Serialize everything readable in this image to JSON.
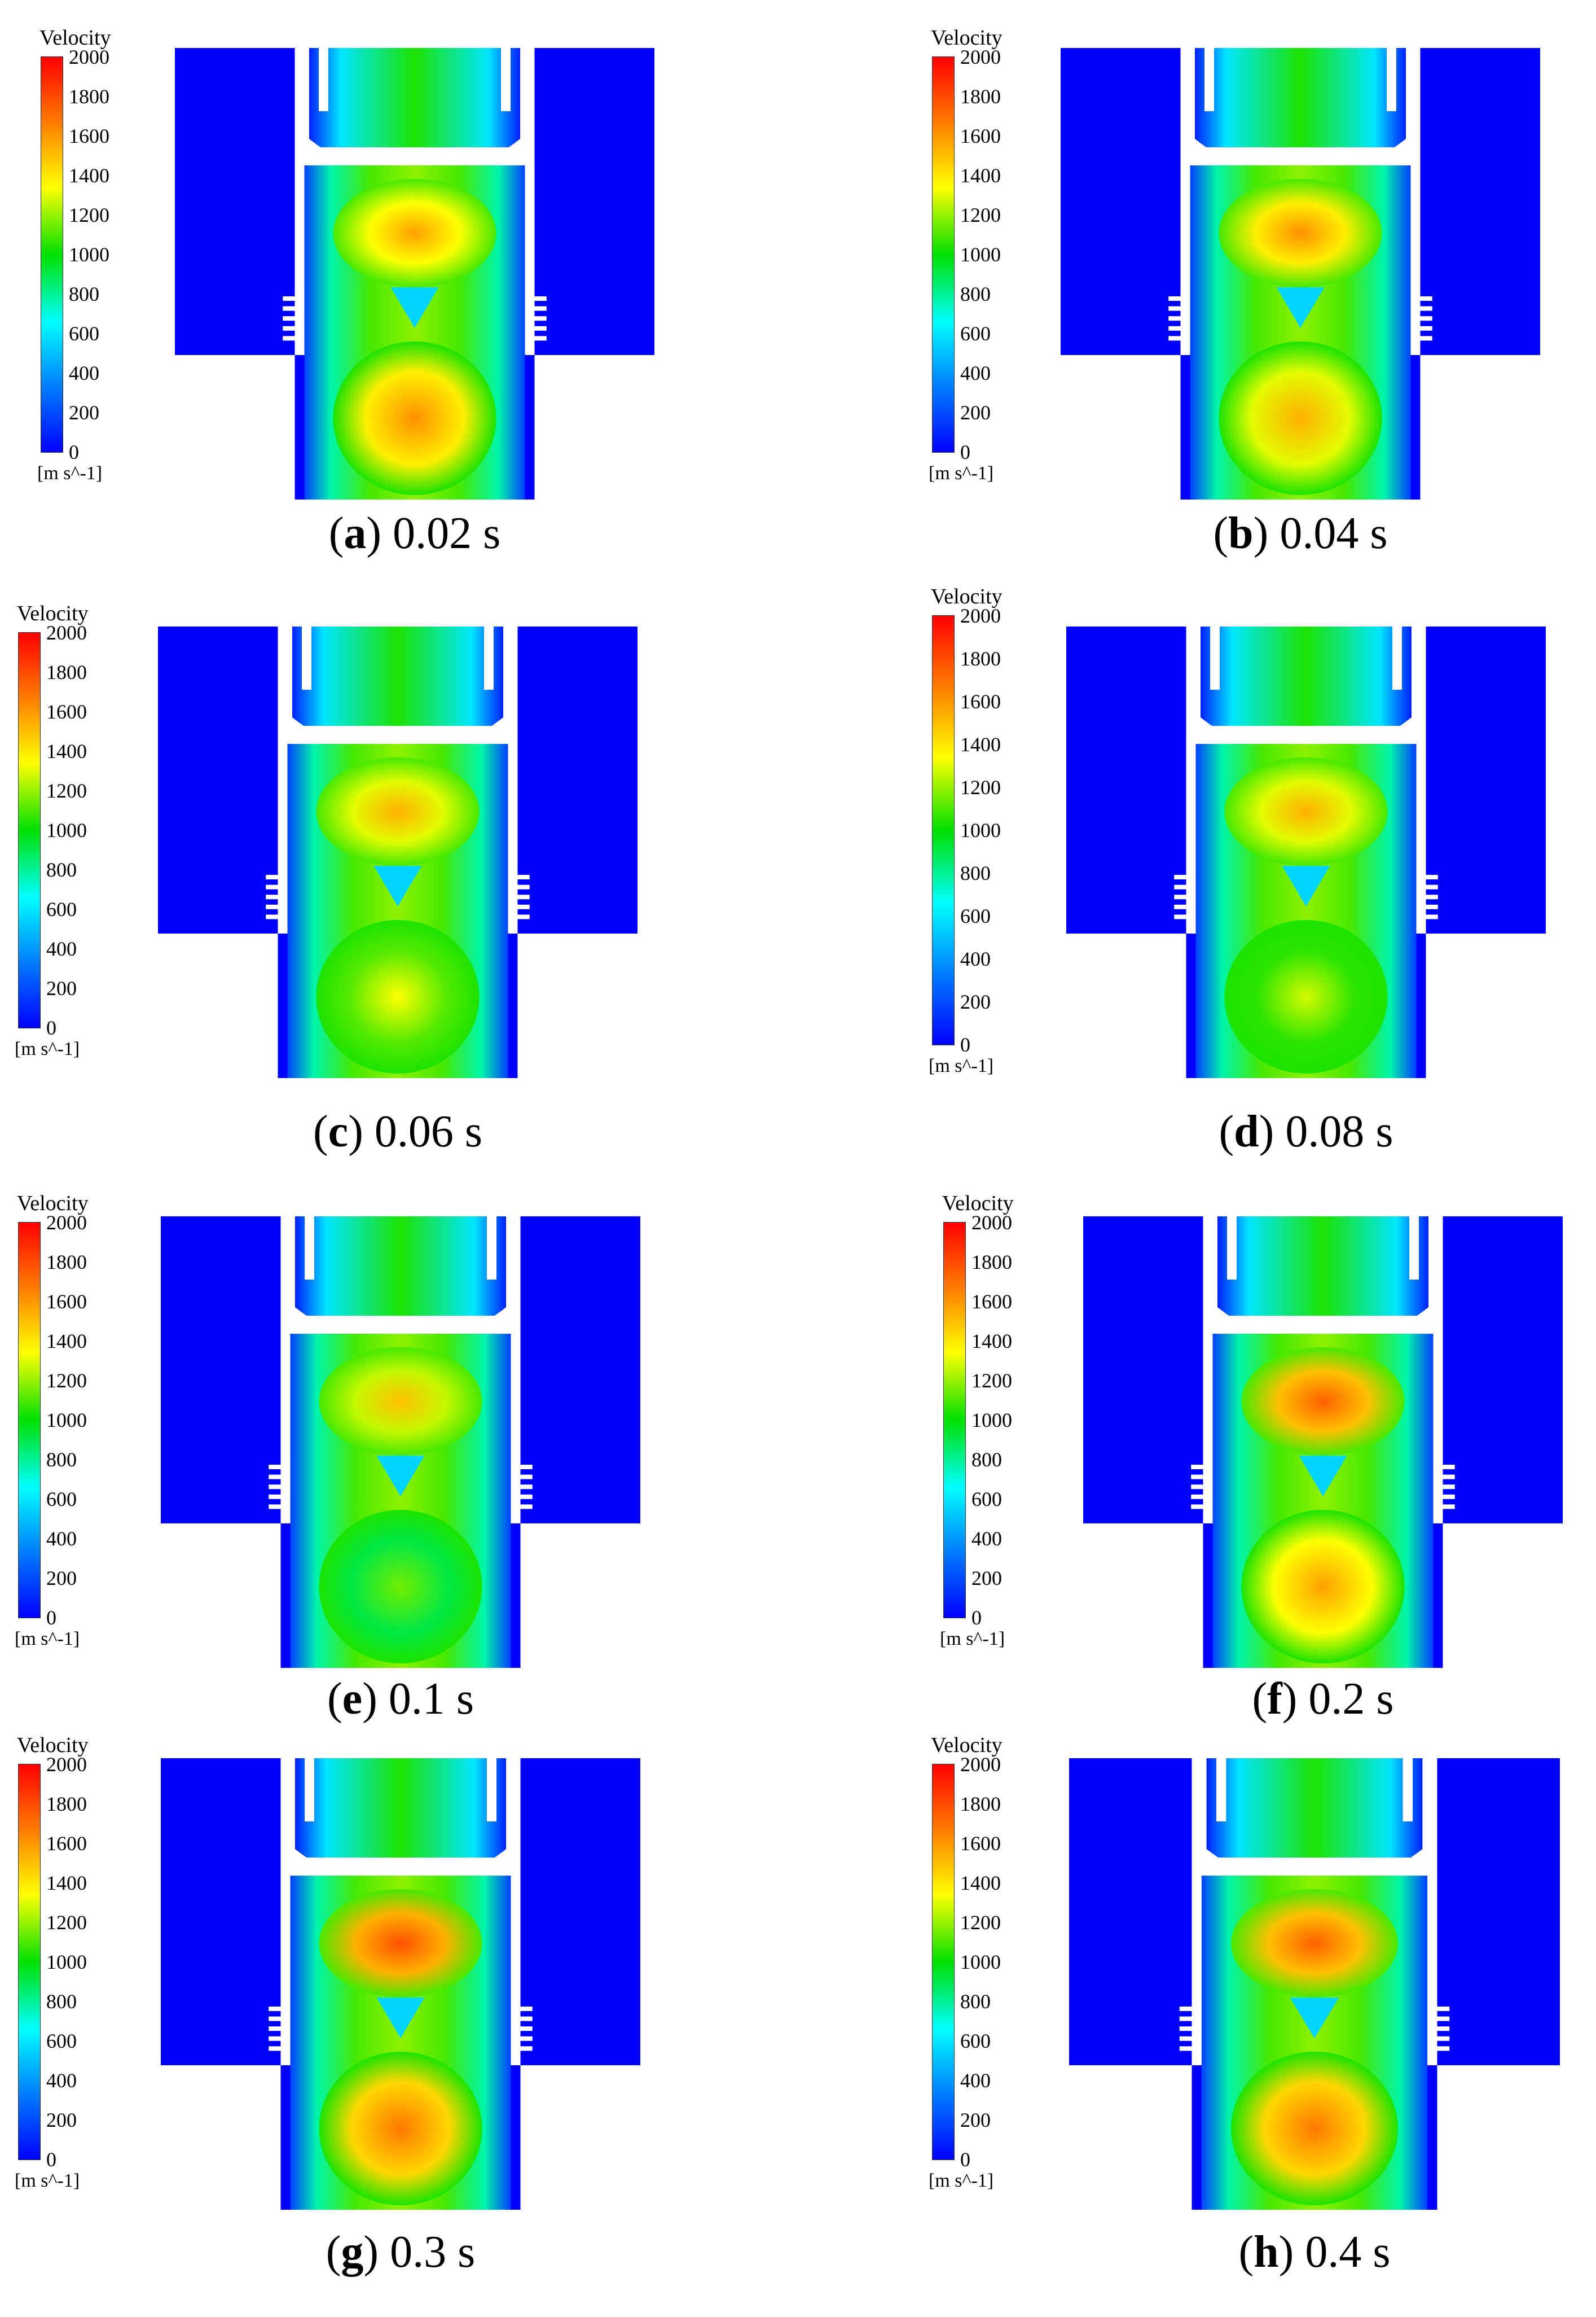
{
  "legend": {
    "title": "Velocity",
    "unit": "[m s^-1]",
    "ticks": [
      "2000",
      "1800",
      "1600",
      "1400",
      "1200",
      "1000",
      "800",
      "600",
      "400",
      "200",
      "0"
    ],
    "min": 0,
    "max": 2000,
    "colormap": [
      "#ff0000",
      "#ff8000",
      "#ffff00",
      "#00e000",
      "#00ffff",
      "#0080ff",
      "#0000ff"
    ]
  },
  "panels": [
    {
      "letter": "a",
      "time": "0.02 s",
      "main_speed": 0.8,
      "jet_speed": 0.82,
      "dark_speed": 0.0
    },
    {
      "letter": "b",
      "time": "0.04 s",
      "main_speed": 0.82,
      "jet_speed": 0.78,
      "dark_speed": 0.0
    },
    {
      "letter": "c",
      "time": "0.06 s",
      "main_speed": 0.78,
      "jet_speed": 0.68,
      "dark_speed": 0.0
    },
    {
      "letter": "d",
      "time": "0.08 s",
      "main_speed": 0.78,
      "jet_speed": 0.65,
      "dark_speed": 0.0
    },
    {
      "letter": "e",
      "time": "0.1 s",
      "main_speed": 0.76,
      "jet_speed": 0.58,
      "dark_speed": 0.0
    },
    {
      "letter": "f",
      "time": "0.2 s",
      "main_speed": 0.88,
      "jet_speed": 0.8,
      "dark_speed": 0.0
    },
    {
      "letter": "g",
      "time": "0.3 s",
      "main_speed": 0.9,
      "jet_speed": 0.85,
      "dark_speed": 0.0
    },
    {
      "letter": "h",
      "time": "0.4 s",
      "main_speed": 0.88,
      "jet_speed": 0.85,
      "dark_speed": 0.0
    }
  ],
  "colors": {
    "blue": "#0000ff",
    "green": "#00e000",
    "yellow": "#f6f600",
    "orange": "#ff8a00",
    "red": "#ff2000",
    "cyan": "#00e8ff",
    "white": "#ffffff"
  }
}
